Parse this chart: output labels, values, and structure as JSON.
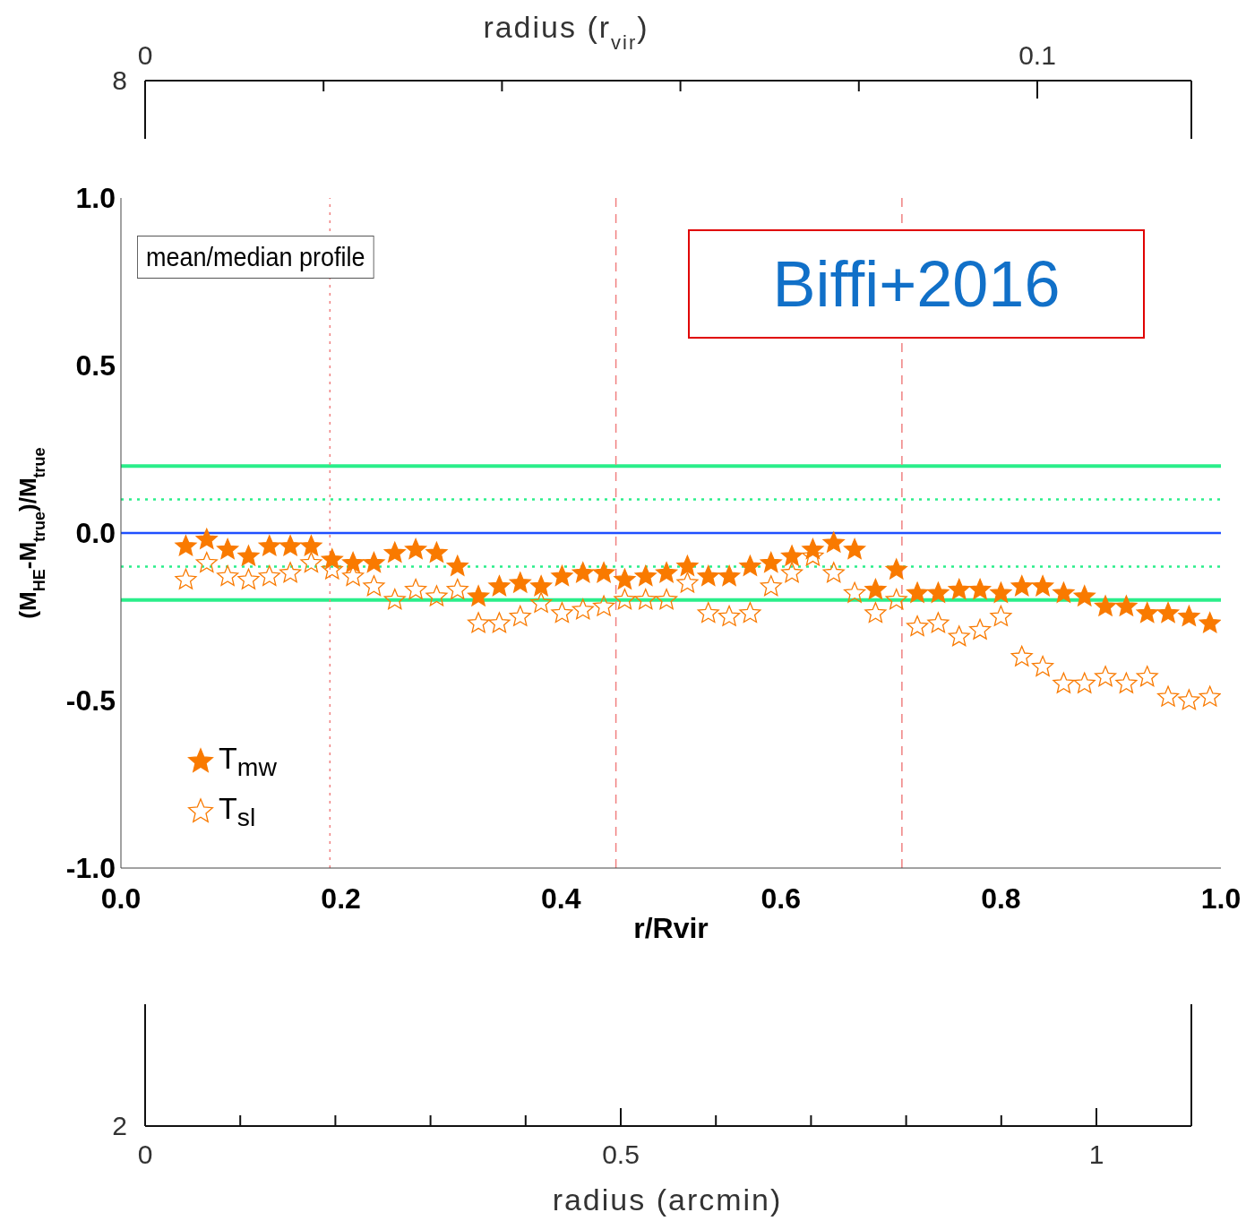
{
  "chart_data": [
    {
      "type": "other",
      "x2label": "radius (r$_{vir}$)",
      "annotations": [
        "0",
        "0.1",
        "8"
      ]
    },
    {
      "type": "scatter",
      "xlabel": "r/Rvir",
      "ylabel": "(M$_{HE}$-M$_{true}$)/M$_{true}$",
      "xlim": [
        0,
        1
      ],
      "ylim": [
        -1,
        1
      ],
      "xticks": [
        {
          "value": 0,
          "label": "0.0"
        },
        {
          "value": 0.2,
          "label": "0.2"
        },
        {
          "value": 0.4,
          "label": "0.4"
        },
        {
          "value": 0.6,
          "label": "0.6"
        },
        {
          "value": 0.8,
          "label": "0.8"
        },
        {
          "value": 1,
          "label": "1.0"
        }
      ],
      "yticks": [
        {
          "value": -1,
          "label": "-1.0"
        },
        {
          "value": -0.5,
          "label": "-0.5"
        },
        {
          "value": 0,
          "label": "0.0"
        },
        {
          "value": 0.5,
          "label": "0.5"
        },
        {
          "value": 1,
          "label": "1.0"
        }
      ],
      "x": [
        0.059,
        0.078,
        0.097,
        0.116,
        0.135,
        0.154,
        0.173,
        0.192,
        0.211,
        0.23,
        0.249,
        0.268,
        0.287,
        0.306,
        0.325,
        0.344,
        0.363,
        0.382,
        0.401,
        0.42,
        0.439,
        0.458,
        0.477,
        0.496,
        0.515,
        0.534,
        0.553,
        0.572,
        0.591,
        0.61,
        0.629,
        0.648,
        0.667,
        0.686,
        0.705,
        0.724,
        0.743,
        0.762,
        0.781,
        0.8,
        0.819,
        0.838,
        0.857,
        0.876,
        0.895,
        0.914,
        0.933,
        0.952,
        0.971,
        0.99
      ],
      "marker": "star",
      "legend": "bottom left",
      "series": [
        {
          "name": "T$_{mw}$",
          "color": "#f97a00",
          "values": [
            -0.04,
            -0.02,
            -0.05,
            -0.07,
            -0.04,
            -0.04,
            -0.04,
            -0.08,
            -0.09,
            -0.09,
            -0.06,
            -0.05,
            -0.06,
            -0.1,
            -0.19,
            -0.16,
            -0.15,
            -0.16,
            -0.13,
            -0.12,
            -0.12,
            -0.14,
            -0.13,
            -0.12,
            -0.1,
            -0.13,
            -0.13,
            -0.1,
            -0.09,
            -0.07,
            -0.05,
            -0.03,
            -0.05,
            -0.17,
            -0.11,
            -0.18,
            -0.18,
            -0.17,
            -0.17,
            -0.18,
            -0.16,
            -0.16,
            -0.18,
            -0.19,
            -0.22,
            -0.22,
            -0.24,
            -0.24,
            -0.25,
            -0.27
          ]
        },
        {
          "name": "T$_{sl}$",
          "color": "#f97a00",
          "values": [
            -0.14,
            -0.09,
            -0.13,
            -0.14,
            -0.13,
            -0.12,
            -0.09,
            -0.11,
            -0.13,
            -0.16,
            -0.2,
            -0.17,
            -0.19,
            -0.17,
            -0.27,
            -0.27,
            -0.25,
            -0.21,
            -0.24,
            -0.23,
            -0.22,
            -0.2,
            -0.2,
            -0.2,
            -0.15,
            -0.24,
            -0.25,
            -0.24,
            -0.16,
            -0.12,
            -0.07,
            -0.12,
            -0.18,
            -0.24,
            -0.2,
            -0.28,
            -0.27,
            -0.31,
            -0.29,
            -0.25,
            -0.37,
            -0.4,
            -0.45,
            -0.45,
            -0.43,
            -0.45,
            -0.43,
            -0.49,
            -0.5,
            -0.49
          ]
        }
      ],
      "ref_lines": [
        {
          "axis": "y",
          "value": 0.2,
          "color": "#2aee8a",
          "line_style": "solid"
        },
        {
          "axis": "y",
          "value": 0.1,
          "color": "#2aee8a",
          "line_style": "dotted"
        },
        {
          "axis": "y",
          "value": 0,
          "color": "#1f4fff",
          "line_style": "solid"
        },
        {
          "axis": "y",
          "value": -0.1,
          "color": "#2aee8a",
          "line_style": "dotted"
        },
        {
          "axis": "y",
          "value": -0.2,
          "color": "#2aee8a",
          "line_style": "solid"
        },
        {
          "axis": "x",
          "value": 0.19,
          "color": "#f08080",
          "line_style": "dotted"
        },
        {
          "axis": "x",
          "value": 0.45,
          "color": "#f08080",
          "line_style": "dashed"
        },
        {
          "axis": "x",
          "value": 0.71,
          "color": "#f08080",
          "line_style": "dashed"
        }
      ],
      "annotations": [
        "mean/median profile",
        "Biffi+2016"
      ]
    },
    {
      "type": "other",
      "xlabel": "radius (arcmin)",
      "annotations": [
        "0",
        "0.5",
        "1",
        "2"
      ]
    }
  ]
}
